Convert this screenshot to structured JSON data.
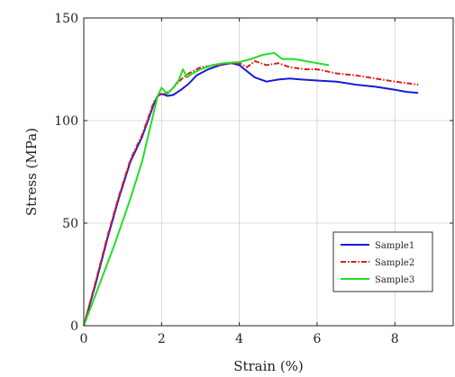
{
  "chart_data": {
    "type": "line",
    "title": "",
    "xlabel": "Strain (%)",
    "ylabel": "Stress (MPa)",
    "xlim": [
      0,
      9.5
    ],
    "ylim": [
      0,
      150
    ],
    "xticks": [
      0,
      2,
      4,
      6,
      8
    ],
    "yticks": [
      0,
      50,
      100,
      150
    ],
    "grid": true,
    "legend_position": "bottom-right",
    "series": [
      {
        "name": "Sample1",
        "color": "#1a1ad6",
        "style": "solid",
        "points": [
          [
            0.0,
            0
          ],
          [
            0.3,
            20
          ],
          [
            0.6,
            42
          ],
          [
            0.9,
            62
          ],
          [
            1.2,
            80
          ],
          [
            1.5,
            92
          ],
          [
            1.8,
            108
          ],
          [
            1.9,
            112
          ],
          [
            2.0,
            113
          ],
          [
            2.15,
            112
          ],
          [
            2.3,
            112.5
          ],
          [
            2.5,
            115
          ],
          [
            2.7,
            118
          ],
          [
            2.9,
            122
          ],
          [
            3.2,
            125
          ],
          [
            3.5,
            127
          ],
          [
            3.8,
            128
          ],
          [
            4.0,
            127
          ],
          [
            4.2,
            124
          ],
          [
            4.4,
            121
          ],
          [
            4.7,
            119
          ],
          [
            5.0,
            120
          ],
          [
            5.3,
            120.5
          ],
          [
            5.6,
            120
          ],
          [
            6.0,
            119.5
          ],
          [
            6.5,
            119
          ],
          [
            7.0,
            117.5
          ],
          [
            7.5,
            116.5
          ],
          [
            8.0,
            115
          ],
          [
            8.3,
            114
          ],
          [
            8.6,
            113.5
          ]
        ]
      },
      {
        "name": "Sample2",
        "color": "#e01b1b",
        "style": "dashdot",
        "points": [
          [
            0.0,
            0
          ],
          [
            0.3,
            21
          ],
          [
            0.6,
            43
          ],
          [
            0.9,
            63
          ],
          [
            1.2,
            81
          ],
          [
            1.5,
            93
          ],
          [
            1.8,
            109
          ],
          [
            1.95,
            113
          ],
          [
            2.1,
            113
          ],
          [
            2.3,
            116
          ],
          [
            2.5,
            120
          ],
          [
            2.7,
            123
          ],
          [
            3.0,
            126
          ],
          [
            3.4,
            127
          ],
          [
            3.8,
            128
          ],
          [
            4.0,
            128
          ],
          [
            4.2,
            126
          ],
          [
            4.4,
            129
          ],
          [
            4.7,
            127
          ],
          [
            5.0,
            128
          ],
          [
            5.3,
            126
          ],
          [
            5.7,
            125
          ],
          [
            6.0,
            125
          ],
          [
            6.5,
            123
          ],
          [
            7.0,
            122
          ],
          [
            7.5,
            120.5
          ],
          [
            8.0,
            119
          ],
          [
            8.6,
            117.5
          ]
        ]
      },
      {
        "name": "Sample3",
        "color": "#22dd22",
        "style": "solid",
        "points": [
          [
            0.0,
            0
          ],
          [
            0.4,
            20
          ],
          [
            0.8,
            40
          ],
          [
            1.2,
            62
          ],
          [
            1.5,
            80
          ],
          [
            1.75,
            100
          ],
          [
            1.9,
            112
          ],
          [
            2.0,
            116
          ],
          [
            2.15,
            113
          ],
          [
            2.3,
            116
          ],
          [
            2.45,
            120
          ],
          [
            2.55,
            125
          ],
          [
            2.65,
            121
          ],
          [
            2.8,
            123
          ],
          [
            3.0,
            125
          ],
          [
            3.3,
            127
          ],
          [
            3.6,
            128
          ],
          [
            4.0,
            128.5
          ],
          [
            4.3,
            130
          ],
          [
            4.6,
            132
          ],
          [
            4.9,
            133
          ],
          [
            5.1,
            130
          ],
          [
            5.4,
            130
          ],
          [
            5.7,
            129
          ],
          [
            6.0,
            128
          ],
          [
            6.3,
            127
          ]
        ]
      }
    ]
  }
}
